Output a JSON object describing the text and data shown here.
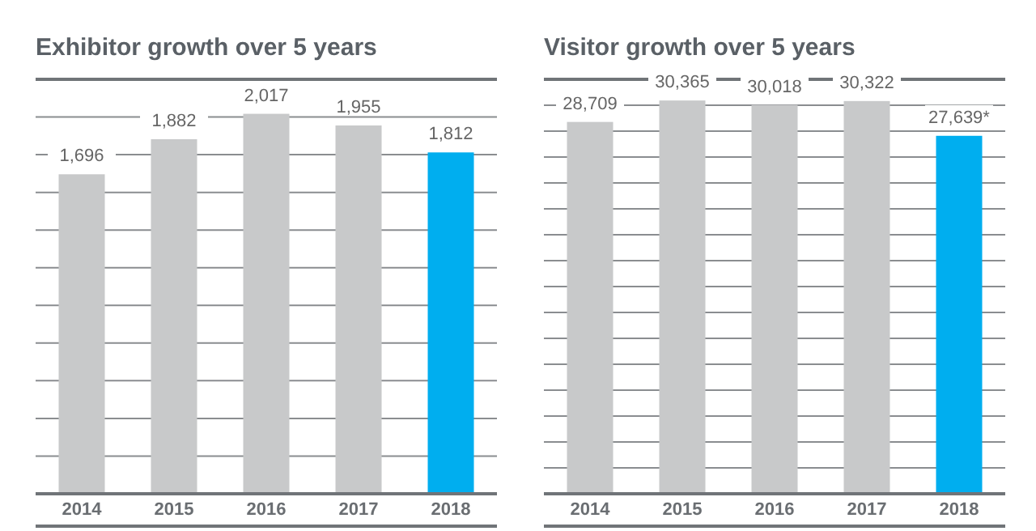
{
  "chart_data": [
    {
      "type": "bar",
      "title": "Exhibitor growth over 5 years",
      "categories": [
        "2014",
        "2015",
        "2016",
        "2017",
        "2018"
      ],
      "values": [
        1696,
        1882,
        2017,
        1955,
        1812
      ],
      "colors": [
        "#c8c9ca",
        "#c8c9ca",
        "#c8c9ca",
        "#c8c9ca",
        "#00aeef"
      ],
      "value_labels": [
        "1,696",
        "1,882",
        "2,017",
        "1,955",
        "1,812"
      ],
      "ylim": [
        0,
        2200
      ],
      "yticks": [
        {
          "value": 0,
          "label": null
        },
        {
          "value": 200,
          "label": null
        },
        {
          "value": 400,
          "label": null
        },
        {
          "value": 600,
          "label": null
        },
        {
          "value": 800,
          "label": null
        },
        {
          "value": 1000,
          "label": null
        },
        {
          "value": 1200,
          "label": null
        },
        {
          "value": 1400,
          "label": null
        },
        {
          "value": 1600,
          "label": null
        },
        {
          "value": 1800,
          "label": null
        },
        {
          "value": 2000,
          "label": null
        }
      ],
      "grid": "y",
      "tick_labels": "x"
    },
    {
      "type": "bar",
      "title": "Visitor growth over 5 years",
      "categories": [
        "2014",
        "2015",
        "2016",
        "2017",
        "2018"
      ],
      "values": [
        28709,
        30365,
        30018,
        30322,
        27639
      ],
      "colors": [
        "#c8c9ca",
        "#c8c9ca",
        "#c8c9ca",
        "#c8c9ca",
        "#00aeef"
      ],
      "value_labels": [
        "28,709",
        "30,365",
        "30,018",
        "30,322",
        "27,639*"
      ],
      "ylim": [
        0,
        32000
      ],
      "yticks": [
        {
          "value": 0,
          "label": null
        },
        {
          "value": 2000,
          "label": null
        },
        {
          "value": 4000,
          "label": null
        },
        {
          "value": 6000,
          "label": null
        },
        {
          "value": 8000,
          "label": null
        },
        {
          "value": 10000,
          "label": null
        },
        {
          "value": 12000,
          "label": null
        },
        {
          "value": 14000,
          "label": null
        },
        {
          "value": 16000,
          "label": null
        },
        {
          "value": 18000,
          "label": null
        },
        {
          "value": 20000,
          "label": null
        },
        {
          "value": 22000,
          "label": null
        },
        {
          "value": 24000,
          "label": null
        },
        {
          "value": 26000,
          "label": null
        },
        {
          "value": 28000,
          "label": null
        },
        {
          "value": 30000,
          "label": null
        }
      ],
      "grid": "y",
      "tick_labels": "x"
    }
  ]
}
